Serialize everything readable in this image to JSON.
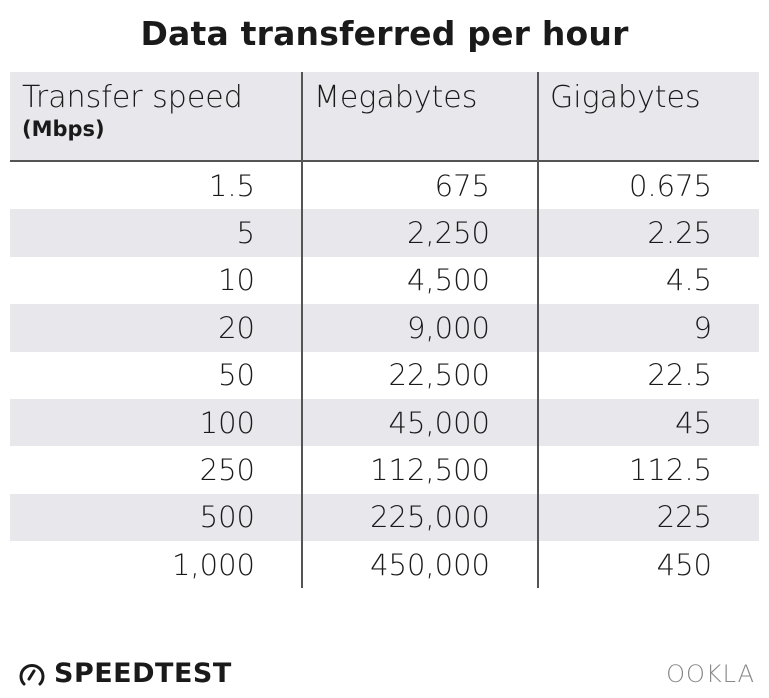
{
  "title": "Data transferred per hour",
  "chart_data": {
    "type": "table",
    "title": "Data transferred per hour",
    "columns": [
      {
        "label": "Transfer speed",
        "sublabel": "(Mbps)"
      },
      {
        "label": "Megabytes",
        "sublabel": ""
      },
      {
        "label": "Gigabytes",
        "sublabel": ""
      }
    ],
    "rows": [
      [
        "1.5",
        "675",
        "0.675"
      ],
      [
        "5",
        "2,250",
        "2.25"
      ],
      [
        "10",
        "4,500",
        "4.5"
      ],
      [
        "20",
        "9,000",
        "9"
      ],
      [
        "50",
        "22,500",
        "22.5"
      ],
      [
        "100",
        "45,000",
        "45"
      ],
      [
        "250",
        "112,500",
        "112.5"
      ],
      [
        "500",
        "225,000",
        "225"
      ],
      [
        "1,000",
        "450,000",
        "450"
      ]
    ],
    "header_bg": "#e8e8ec",
    "stripe_bg": "#e8e8ec"
  },
  "footer": {
    "left_logo": "SPEEDTEST",
    "right_logo": "OOKLA",
    "left_icon": "speedometer-icon"
  }
}
